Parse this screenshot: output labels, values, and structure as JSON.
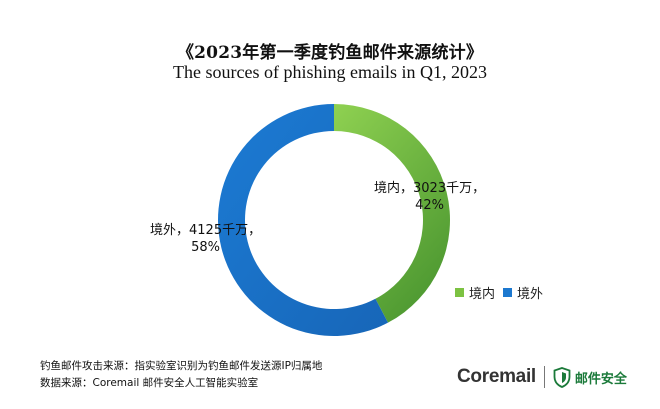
{
  "chart_data": {
    "type": "pie",
    "donut": true,
    "title": "《2023年第一季度钓鱼邮件来源统计》",
    "subtitle": "The sources of phishing emails in Q1, 2023",
    "categories": [
      "境内",
      "境外"
    ],
    "values": [
      3023,
      4125
    ],
    "percentages": [
      42,
      58
    ],
    "unit": "千万",
    "data_labels": [
      {
        "line1": "境内，3023千万，",
        "line2": "42%"
      },
      {
        "line1": "境外，4125千万，",
        "line2": "58%"
      }
    ],
    "colors": [
      "#7cc242",
      "#1c78cf"
    ],
    "legend": {
      "position": "right-bottom",
      "items": [
        "境内",
        "境外"
      ]
    }
  },
  "footnotes": {
    "line1": "钓鱼邮件攻击来源：指实验室识别为钓鱼邮件发送源IP归属地",
    "line2": "数据来源：Coremail 邮件安全人工智能实验室"
  },
  "brand": {
    "name": "Coremail",
    "sub": "邮件安全",
    "color": "#1b7a3a"
  }
}
